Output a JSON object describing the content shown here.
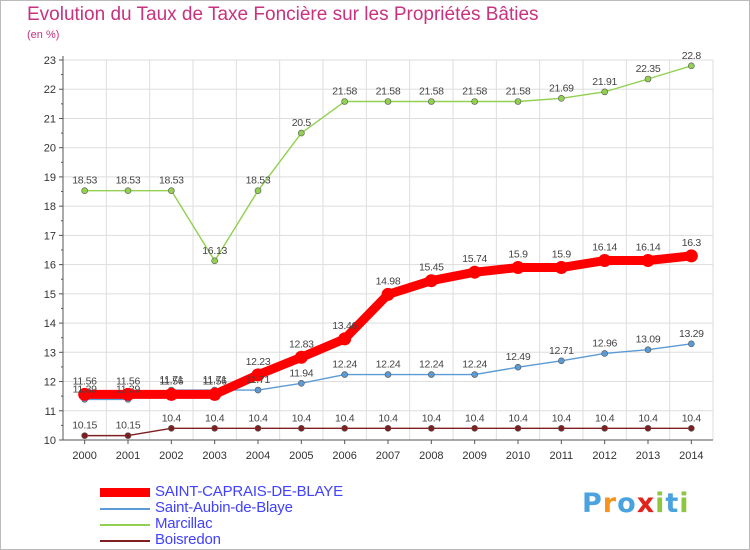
{
  "chart_data": {
    "type": "line",
    "title": "Evolution du Taux de Taxe Foncière sur les Propriétés Bâties",
    "unit_label": "(en %)",
    "xlabel": "",
    "ylabel": "(en %)",
    "categories": [
      "2000",
      "2001",
      "2002",
      "2003",
      "2004",
      "2005",
      "2006",
      "2007",
      "2008",
      "2009",
      "2010",
      "2011",
      "2012",
      "2013",
      "2014"
    ],
    "ylim": [
      10,
      23
    ],
    "yticks": [
      10,
      11,
      12,
      13,
      14,
      15,
      16,
      17,
      18,
      19,
      20,
      21,
      22,
      23
    ],
    "grid": true,
    "legend_position": "bottom-left",
    "series": [
      {
        "name": "SAINT-CAPRAIS-DE-BLAYE",
        "color": "#ff0000",
        "emphasis": "thick",
        "values": [
          11.56,
          11.56,
          11.56,
          11.56,
          12.23,
          12.83,
          13.46,
          14.98,
          15.45,
          15.74,
          15.9,
          15.9,
          16.14,
          16.14,
          16.3
        ]
      },
      {
        "name": "Saint-Aubin-de-Blaye",
        "color": "#5b9bd5",
        "emphasis": "normal",
        "values": [
          11.39,
          11.39,
          11.71,
          11.71,
          11.71,
          11.94,
          12.24,
          12.24,
          12.24,
          12.24,
          12.49,
          12.71,
          12.96,
          13.09,
          13.29
        ]
      },
      {
        "name": "Marcillac",
        "color": "#92d050",
        "emphasis": "normal",
        "values": [
          18.53,
          18.53,
          18.53,
          16.13,
          18.53,
          20.5,
          21.58,
          21.58,
          21.58,
          21.58,
          21.58,
          21.69,
          21.91,
          22.35,
          22.8
        ]
      },
      {
        "name": "Boisredon",
        "color": "#7f1f1f",
        "emphasis": "normal",
        "values": [
          10.15,
          10.15,
          10.4,
          10.4,
          10.4,
          10.4,
          10.4,
          10.4,
          10.4,
          10.4,
          10.4,
          10.4,
          10.4,
          10.4,
          10.4
        ]
      }
    ]
  },
  "branding": {
    "logo_text": "Proxiti",
    "logo_letters": [
      "P",
      "r",
      "o",
      "x",
      "i",
      "t",
      "i"
    ],
    "logo_colors": [
      "#4aa3df",
      "#f7941d",
      "#4aa3df",
      "#e2231a",
      "#8dc63f",
      "#4aa3df",
      "#8dc63f"
    ]
  }
}
